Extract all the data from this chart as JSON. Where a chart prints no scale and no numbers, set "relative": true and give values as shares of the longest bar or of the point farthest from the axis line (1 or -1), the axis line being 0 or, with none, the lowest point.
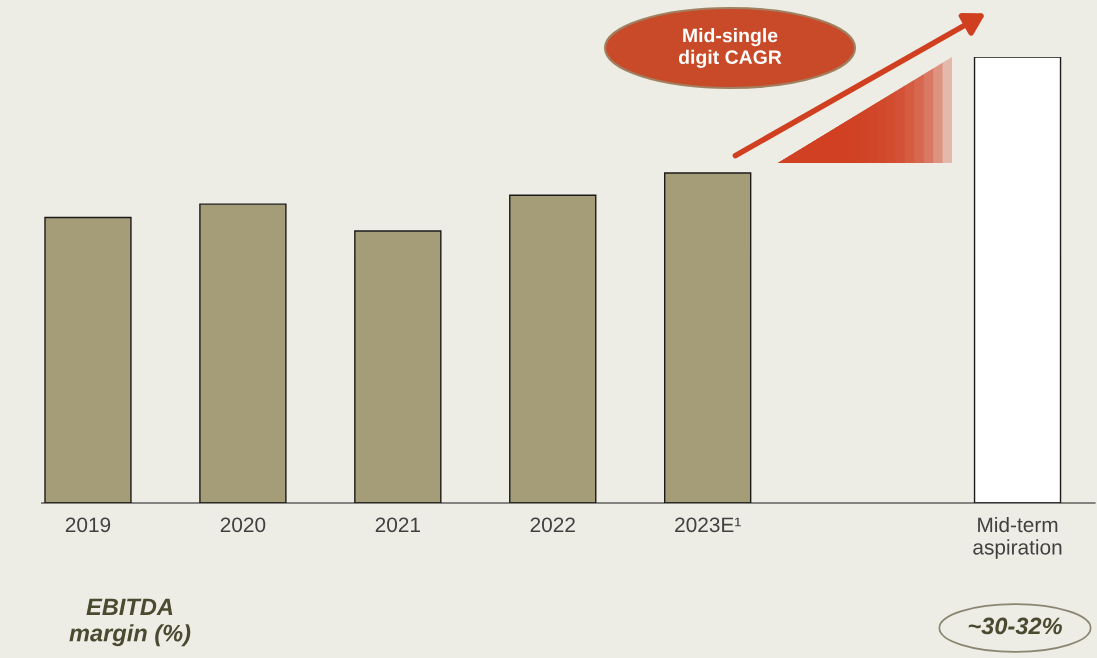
{
  "chart_data": {
    "type": "bar",
    "relative": true,
    "categories": [
      "2019",
      "2020",
      "2021",
      "2022",
      "2023E¹",
      null,
      "Mid-term\naspiration"
    ],
    "values": [
      0.64,
      0.67,
      0.61,
      0.69,
      0.74,
      null,
      1.0
    ],
    "colors": [
      "#a59d78",
      "#a59d78",
      "#a59d78",
      "#a59d78",
      "#a59d78",
      "#a59d78",
      "#ffffff"
    ],
    "annotations": [
      "Mid-single\ndigit CAGR",
      "EBITDA\nmargin (%)",
      "~30-32%"
    ],
    "grid": false,
    "legend": false
  }
}
